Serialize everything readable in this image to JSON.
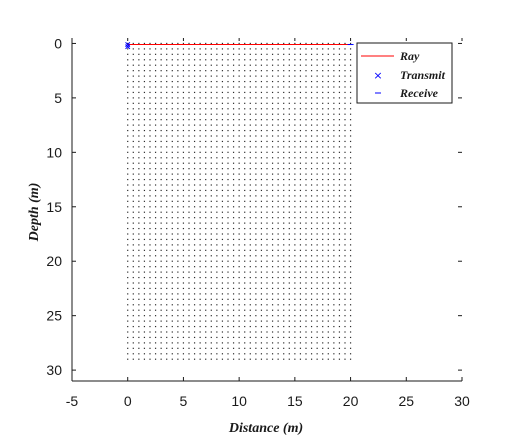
{
  "chart_data": {
    "type": "scatter",
    "title": "",
    "xlabel": "Distance (m)",
    "ylabel": "Depth (m)",
    "xlim": [
      -5,
      30
    ],
    "ylim": [
      31,
      -0.5
    ],
    "y_reversed": true,
    "xticks": [
      "-5",
      "0",
      "5",
      "10",
      "15",
      "20",
      "25",
      "30"
    ],
    "yticks": [
      "0",
      "5",
      "10",
      "15",
      "20",
      "25",
      "30"
    ],
    "grid": false,
    "legend_position": "top-right",
    "grid_nodes": {
      "x_min": 0,
      "x_max": 20,
      "x_step": 0.5,
      "y_min": 0,
      "y_max": 29,
      "y_step": 0.5
    },
    "series": [
      {
        "name": "Ray",
        "kind": "line",
        "color": "#ff0000",
        "x": [
          0,
          20
        ],
        "y": [
          0.1,
          0.1
        ]
      },
      {
        "name": "Transmit",
        "kind": "marker-x",
        "color": "#0000ff",
        "x": [
          0,
          0
        ],
        "y": [
          0.1,
          0.3
        ]
      },
      {
        "name": "Receive",
        "kind": "marker-dash",
        "color": "#0000ff",
        "x": [
          20
        ],
        "y": [
          0.1
        ]
      }
    ]
  }
}
